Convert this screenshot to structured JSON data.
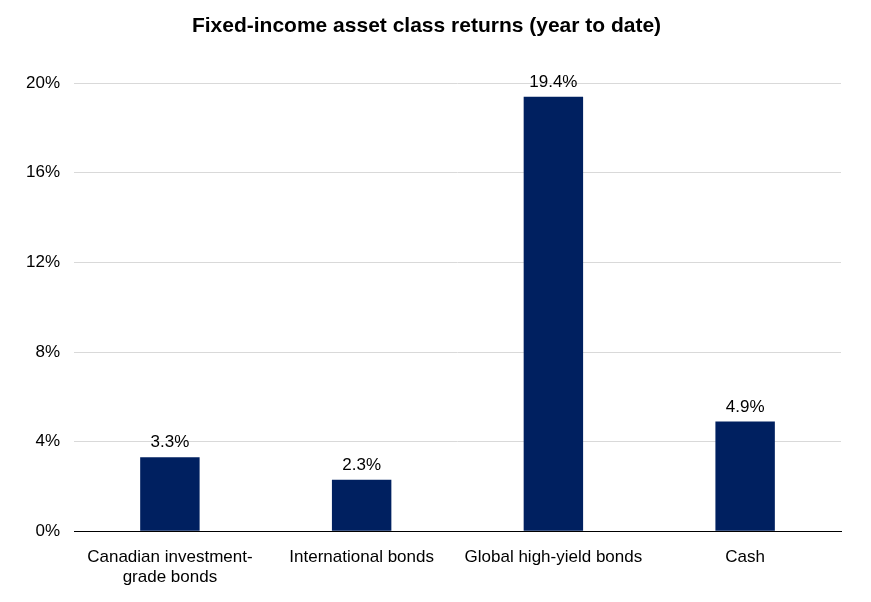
{
  "chart_data": {
    "type": "bar",
    "title": "Fixed-income asset class returns (year to date)",
    "categories": [
      "Canadian investment-grade bonds",
      "International bonds",
      "Global high-yield bonds",
      "Cash"
    ],
    "values": [
      3.3,
      2.3,
      19.4,
      4.9
    ],
    "value_labels": [
      "3.3%",
      "2.3%",
      "19.4%",
      "4.9%"
    ],
    "color": "#002060",
    "ylim": [
      0,
      20
    ],
    "yticks": [
      {
        "value": 0,
        "label": "0%"
      },
      {
        "value": 4,
        "label": "4%"
      },
      {
        "value": 8,
        "label": "8%"
      },
      {
        "value": 12,
        "label": "12%"
      },
      {
        "value": 16,
        "label": "16%"
      },
      {
        "value": 20,
        "label": "20%"
      }
    ],
    "grid": true,
    "data_labels": true
  }
}
